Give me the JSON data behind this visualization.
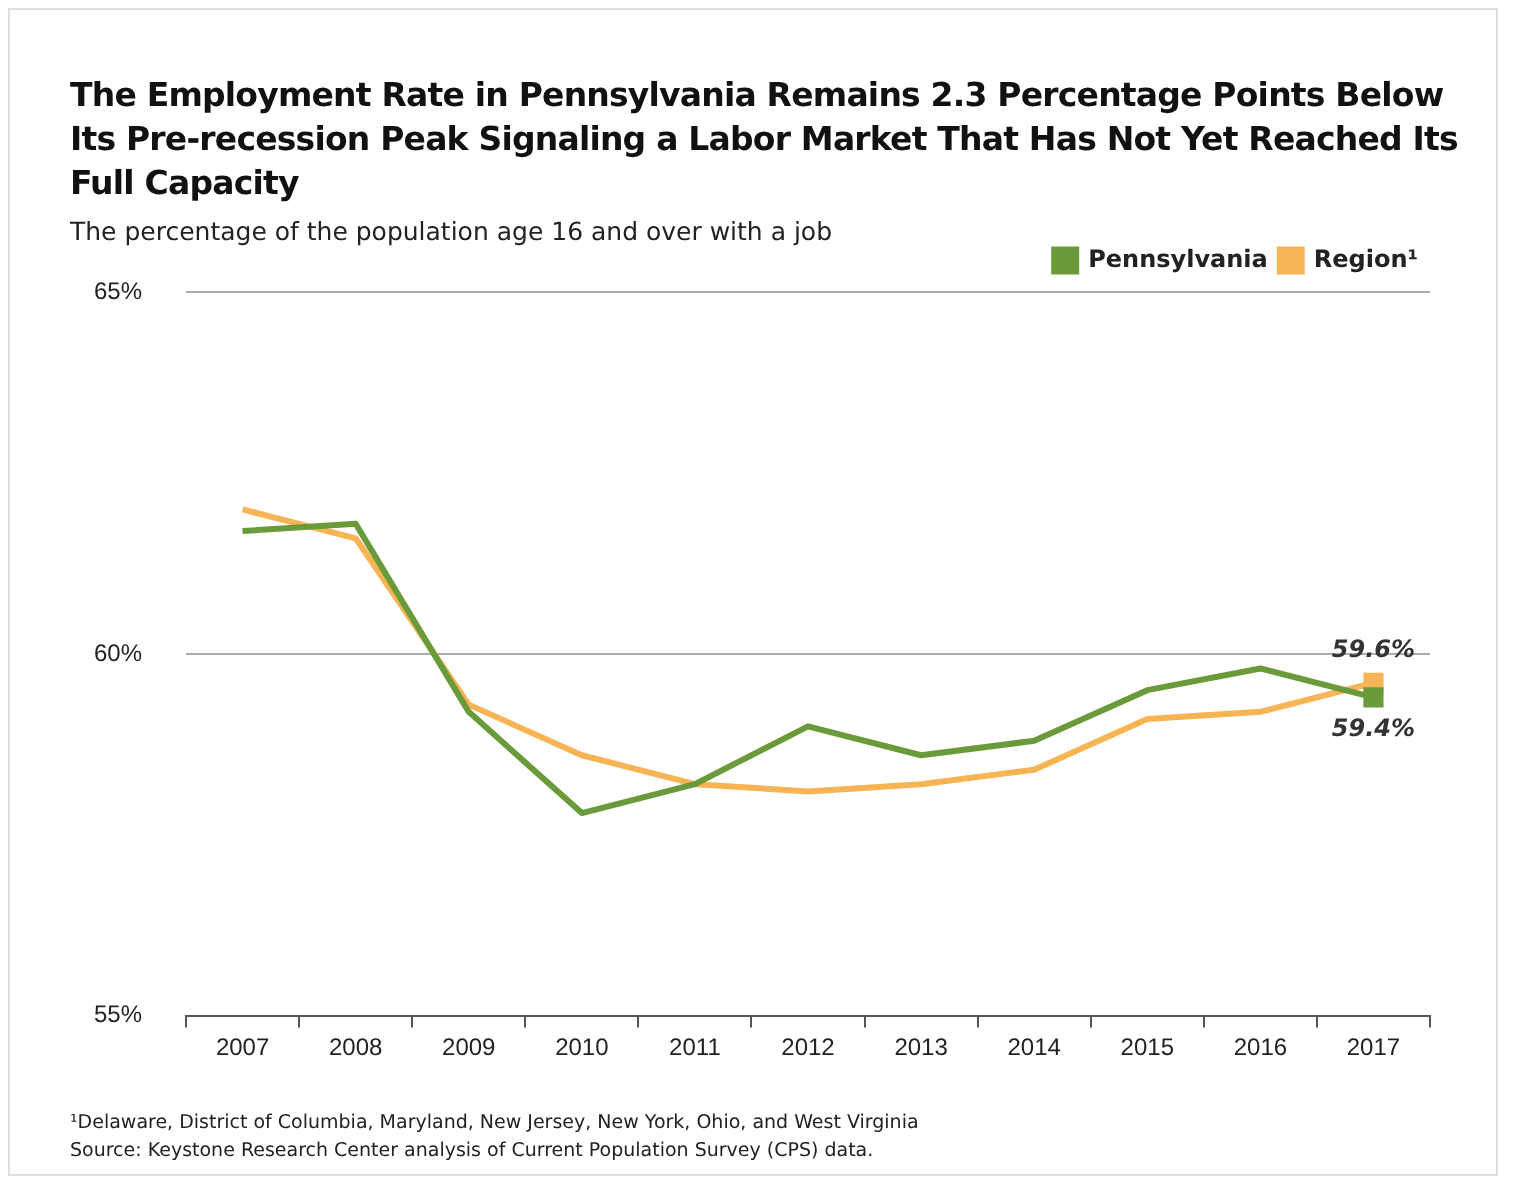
{
  "chart_data": {
    "type": "line",
    "title": "The Employment Rate in Pennsylvania Remains 2.3 Percentage Points Below Its Pre-recession Peak Signaling a Labor Market That Has Not Yet Reached Its Full Capacity",
    "subtitle": "The percentage of the population age 16 and over with a job",
    "categories": [
      "2007",
      "2008",
      "2009",
      "2010",
      "2011",
      "2012",
      "2013",
      "2014",
      "2015",
      "2016",
      "2017"
    ],
    "series": [
      {
        "name": "Pennsylvania",
        "color": "#6a9a3a",
        "values": [
          61.7,
          61.8,
          59.2,
          57.8,
          58.2,
          59.0,
          58.6,
          58.8,
          59.5,
          59.8,
          59.4
        ]
      },
      {
        "name": "Region¹",
        "color": "#f7b455",
        "values": [
          62.0,
          61.6,
          59.3,
          58.6,
          58.2,
          58.1,
          58.2,
          58.4,
          59.1,
          59.2,
          59.6
        ]
      }
    ],
    "ylim": [
      55,
      65
    ],
    "yticks": [
      {
        "value": 55,
        "label": "55%"
      },
      {
        "value": 60,
        "label": "60%"
      },
      {
        "value": 65,
        "label": "65%"
      }
    ],
    "grid": "y",
    "legend": "top right",
    "annotations": [
      {
        "text": "59.6%",
        "x": "2017",
        "y": 59.6
      },
      {
        "text": "59.4%",
        "x": "2017",
        "y": 59.4
      },
      "¹Delaware, District of Columbia, Maryland, New Jersey, New York, Ohio, and West Virginia",
      "Source: Keystone Research Center analysis of Current Population Survey (CPS) data."
    ]
  }
}
